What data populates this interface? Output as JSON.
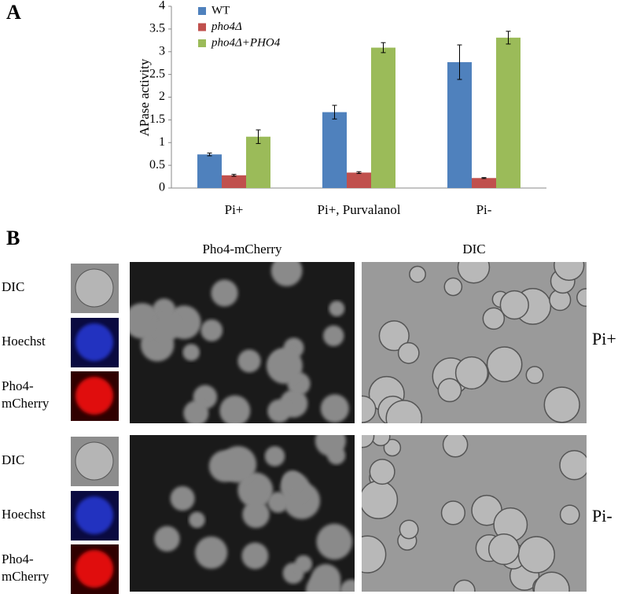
{
  "panel_labels": [
    "A",
    "B"
  ],
  "chart_data": {
    "type": "bar",
    "ylabel": "APase activity",
    "categories": [
      "Pi+",
      "Pi+, Purvalanol",
      "Pi-"
    ],
    "series": [
      {
        "name": "WT",
        "color": "#4f81bd",
        "values": [
          0.74,
          1.67,
          2.77
        ],
        "errors": [
          0.03,
          0.15,
          0.38
        ]
      },
      {
        "name": "pho4Δ",
        "color": "#c0504d",
        "values": [
          0.28,
          0.34,
          0.22
        ],
        "errors": [
          0.02,
          0.02,
          0.01
        ]
      },
      {
        "name": "pho4Δ+PHO4",
        "color": "#9bbb59",
        "values": [
          1.13,
          3.09,
          3.31
        ],
        "errors": [
          0.15,
          0.11,
          0.14
        ]
      }
    ],
    "ylim": [
      0,
      4
    ],
    "yticks": [
      0,
      0.5,
      1,
      1.5,
      2,
      2.5,
      3,
      3.5,
      4
    ],
    "legend": "upper left"
  },
  "microscopy": {
    "column_headers": [
      "Pho4-mCherry",
      "DIC"
    ],
    "rows": [
      {
        "condition": "Pi+",
        "inset_labels": [
          [
            "DIC"
          ],
          [
            "Hoechst"
          ],
          [
            "Pho4-",
            "mCherry"
          ]
        ]
      },
      {
        "condition": "Pi-",
        "inset_labels": [
          [
            "DIC"
          ],
          [
            "Hoechst"
          ],
          [
            "Pho4-",
            "mCherry"
          ]
        ]
      }
    ]
  }
}
